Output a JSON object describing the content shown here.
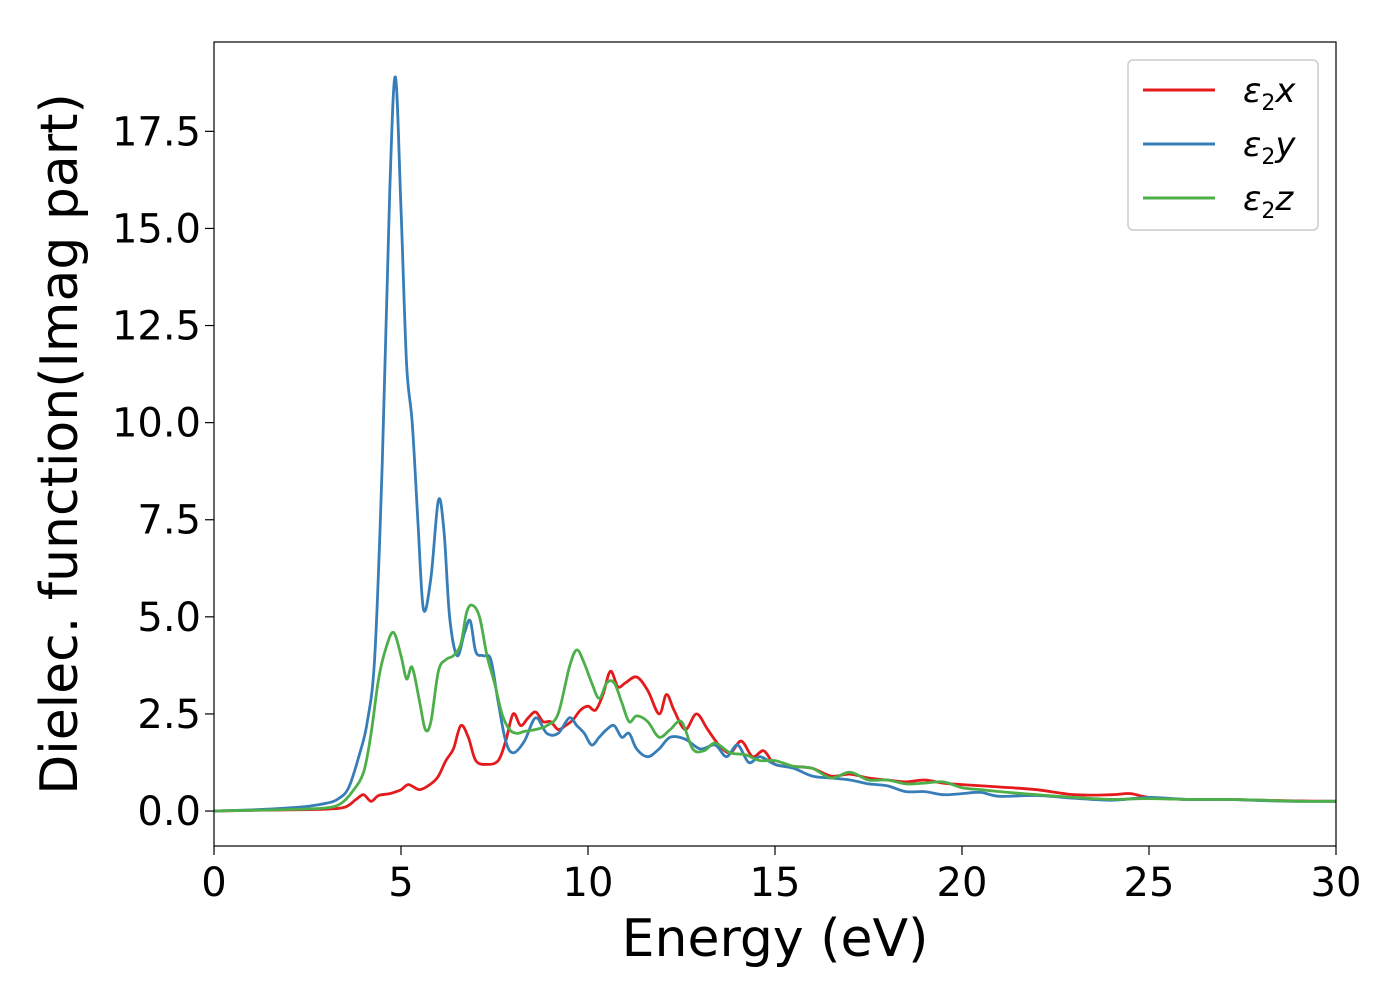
{
  "chart_data": {
    "type": "line",
    "title": "",
    "xlabel": "Energy (eV)",
    "ylabel": "Dielec. function(Imag part)",
    "xlim": [
      0,
      30
    ],
    "ylim": [
      -0.9,
      19.8
    ],
    "xticks": [
      0,
      5,
      10,
      15,
      20,
      25,
      30
    ],
    "xtick_labels": [
      "0",
      "5",
      "10",
      "15",
      "20",
      "25",
      "30"
    ],
    "yticks": [
      0,
      2.5,
      5,
      7.5,
      10,
      12.5,
      15,
      17.5
    ],
    "ytick_labels": [
      "0.0",
      "2.5",
      "5.0",
      "7.5",
      "10.0",
      "12.5",
      "15.0",
      "17.5"
    ],
    "grid": false,
    "legend_position": "top-right",
    "series": [
      {
        "name": "ε2x",
        "legend_base": "ε",
        "legend_sub": "2",
        "legend_suffix": "x",
        "color": "#e41a1c",
        "x": [
          0,
          1,
          2,
          3,
          3.5,
          3.8,
          4.0,
          4.2,
          4.4,
          4.7,
          5.0,
          5.2,
          5.5,
          5.8,
          6.0,
          6.2,
          6.4,
          6.6,
          6.8,
          7.0,
          7.3,
          7.6,
          7.8,
          8.0,
          8.2,
          8.4,
          8.6,
          8.8,
          9.0,
          9.2,
          9.4,
          9.6,
          9.8,
          10.0,
          10.2,
          10.4,
          10.6,
          10.8,
          11.0,
          11.3,
          11.6,
          11.9,
          12.1,
          12.3,
          12.6,
          12.9,
          13.2,
          13.5,
          13.8,
          14.1,
          14.4,
          14.7,
          15.0,
          15.5,
          16.0,
          16.5,
          17.0,
          17.5,
          18.0,
          18.5,
          19.0,
          19.5,
          20.0,
          21.0,
          22.0,
          23.0,
          24.0,
          24.5,
          25.0,
          26.0,
          27.0,
          28.0,
          29.0,
          30.0
        ],
        "y": [
          0,
          0.02,
          0.03,
          0.05,
          0.1,
          0.3,
          0.42,
          0.25,
          0.4,
          0.45,
          0.55,
          0.68,
          0.55,
          0.7,
          0.9,
          1.3,
          1.6,
          2.2,
          1.9,
          1.3,
          1.2,
          1.3,
          1.8,
          2.5,
          2.2,
          2.4,
          2.55,
          2.3,
          2.3,
          2.1,
          2.2,
          2.35,
          2.6,
          2.7,
          2.6,
          3.0,
          3.6,
          3.2,
          3.3,
          3.45,
          3.1,
          2.5,
          3.0,
          2.6,
          2.1,
          2.5,
          2.1,
          1.7,
          1.5,
          1.8,
          1.4,
          1.55,
          1.2,
          1.15,
          1.1,
          0.9,
          0.95,
          0.85,
          0.8,
          0.75,
          0.8,
          0.72,
          0.68,
          0.62,
          0.55,
          0.42,
          0.42,
          0.45,
          0.35,
          0.3,
          0.3,
          0.28,
          0.26,
          0.25
        ]
      },
      {
        "name": "ε2y",
        "legend_base": "ε",
        "legend_sub": "2",
        "legend_suffix": "y",
        "color": "#377eb8",
        "x": [
          0,
          1,
          2,
          2.5,
          3.0,
          3.3,
          3.6,
          3.9,
          4.1,
          4.3,
          4.5,
          4.7,
          4.85,
          5.0,
          5.15,
          5.3,
          5.45,
          5.6,
          5.8,
          6.0,
          6.15,
          6.3,
          6.5,
          6.7,
          6.85,
          7.0,
          7.2,
          7.4,
          7.6,
          7.8,
          8.0,
          8.3,
          8.6,
          8.9,
          9.2,
          9.5,
          9.7,
          9.9,
          10.1,
          10.3,
          10.5,
          10.7,
          10.9,
          11.1,
          11.3,
          11.6,
          11.9,
          12.2,
          12.6,
          13.0,
          13.4,
          13.7,
          14.0,
          14.3,
          14.6,
          15.0,
          15.5,
          16.0,
          16.5,
          17.0,
          17.5,
          18.0,
          18.5,
          19.0,
          19.5,
          20.0,
          20.5,
          21.0,
          22.0,
          23.0,
          24.0,
          25.0,
          26.0,
          27.0,
          28.0,
          29.0,
          30.0
        ],
        "y": [
          0,
          0.03,
          0.08,
          0.12,
          0.2,
          0.3,
          0.6,
          1.5,
          2.3,
          4.0,
          9.0,
          16.0,
          18.9,
          15.5,
          11.5,
          10.0,
          7.5,
          5.2,
          6.0,
          8.0,
          7.2,
          5.0,
          4.0,
          4.6,
          4.9,
          4.1,
          4.0,
          3.9,
          2.8,
          1.8,
          1.5,
          1.8,
          2.4,
          2.0,
          2.0,
          2.4,
          2.2,
          2.0,
          1.7,
          1.9,
          2.1,
          2.2,
          1.9,
          2.0,
          1.6,
          1.4,
          1.6,
          1.9,
          1.85,
          1.6,
          1.7,
          1.4,
          1.7,
          1.25,
          1.4,
          1.2,
          1.1,
          0.9,
          0.85,
          0.8,
          0.7,
          0.65,
          0.5,
          0.5,
          0.42,
          0.45,
          0.48,
          0.38,
          0.4,
          0.33,
          0.28,
          0.35,
          0.3,
          0.3,
          0.27,
          0.25,
          0.25
        ]
      },
      {
        "name": "ε2z",
        "legend_base": "ε",
        "legend_sub": "2",
        "legend_suffix": "z",
        "color": "#4daf4a",
        "x": [
          0,
          1,
          2,
          3,
          3.4,
          3.7,
          4.0,
          4.2,
          4.4,
          4.6,
          4.8,
          5.0,
          5.15,
          5.3,
          5.5,
          5.65,
          5.8,
          6.0,
          6.2,
          6.4,
          6.6,
          6.75,
          6.9,
          7.1,
          7.3,
          7.5,
          7.7,
          7.9,
          8.1,
          8.3,
          8.6,
          8.9,
          9.2,
          9.5,
          9.7,
          9.9,
          10.1,
          10.3,
          10.5,
          10.7,
          10.9,
          11.1,
          11.3,
          11.6,
          11.9,
          12.2,
          12.5,
          12.8,
          13.1,
          13.4,
          13.8,
          14.2,
          14.6,
          15.0,
          15.5,
          16.0,
          16.5,
          17.0,
          17.5,
          18.0,
          18.5,
          19.0,
          19.5,
          20.0,
          20.5,
          21.0,
          22.0,
          23.0,
          24.0,
          25.0,
          26.0,
          27.0,
          28.0,
          29.0,
          30.0
        ],
        "y": [
          0,
          0.02,
          0.04,
          0.08,
          0.2,
          0.5,
          1.0,
          2.0,
          3.4,
          4.2,
          4.6,
          4.0,
          3.4,
          3.7,
          2.8,
          2.1,
          2.3,
          3.6,
          3.9,
          4.0,
          4.3,
          5.1,
          5.3,
          5.0,
          4.0,
          3.3,
          2.5,
          2.1,
          2.0,
          2.05,
          2.1,
          2.2,
          2.5,
          3.7,
          4.15,
          3.8,
          3.3,
          2.9,
          3.3,
          3.3,
          2.8,
          2.3,
          2.45,
          2.3,
          1.9,
          2.1,
          2.3,
          1.6,
          1.55,
          1.75,
          1.5,
          1.45,
          1.3,
          1.3,
          1.15,
          1.1,
          0.85,
          1.0,
          0.8,
          0.8,
          0.7,
          0.72,
          0.75,
          0.6,
          0.55,
          0.5,
          0.42,
          0.35,
          0.3,
          0.32,
          0.3,
          0.3,
          0.28,
          0.25,
          0.25
        ]
      }
    ]
  }
}
